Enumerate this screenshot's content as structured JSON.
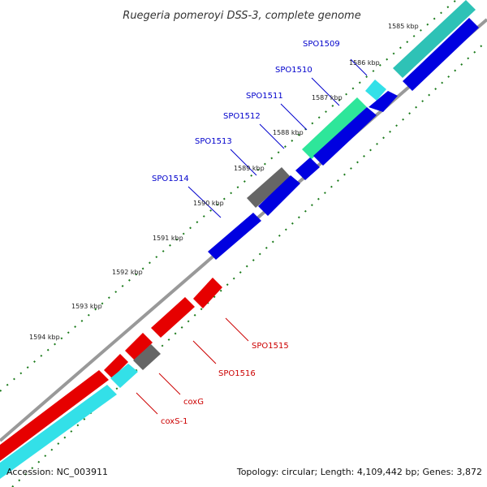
{
  "title": "Ruegeria pomeroyi DSS-3, complete genome",
  "footer": {
    "accession": "Accession: NC_003911",
    "summary": "Topology: circular; Length: 4,109,442 bp; Genes: 3,872"
  },
  "colors": {
    "forward_cds": "#0000e0",
    "reverse_cds": "#e60000",
    "cyan_feature": "#33e0e8",
    "teal_feature": "#2ec2b6",
    "green_feature": "#2ee69a",
    "gray_feature": "#666666",
    "backbone": "#999999",
    "tick_green": "#1a7a1a",
    "label_blue": "#0000cc",
    "label_red": "#cc0000"
  },
  "scale_labels": [
    "1585 kbp",
    "1586 kbp",
    "1587 kbp",
    "1588 kbp",
    "1589 kbp",
    "1590 kbp",
    "1591 kbp",
    "1592 kbp",
    "1593 kbp",
    "1594 kbp"
  ],
  "forward_labels": [
    "SPO1509",
    "SPO1510",
    "SPO1511",
    "SPO1512",
    "SPO1513",
    "SPO1514"
  ],
  "reverse_labels": [
    "SPO1515",
    "SPO1516",
    "coxG",
    "coxS-1"
  ]
}
